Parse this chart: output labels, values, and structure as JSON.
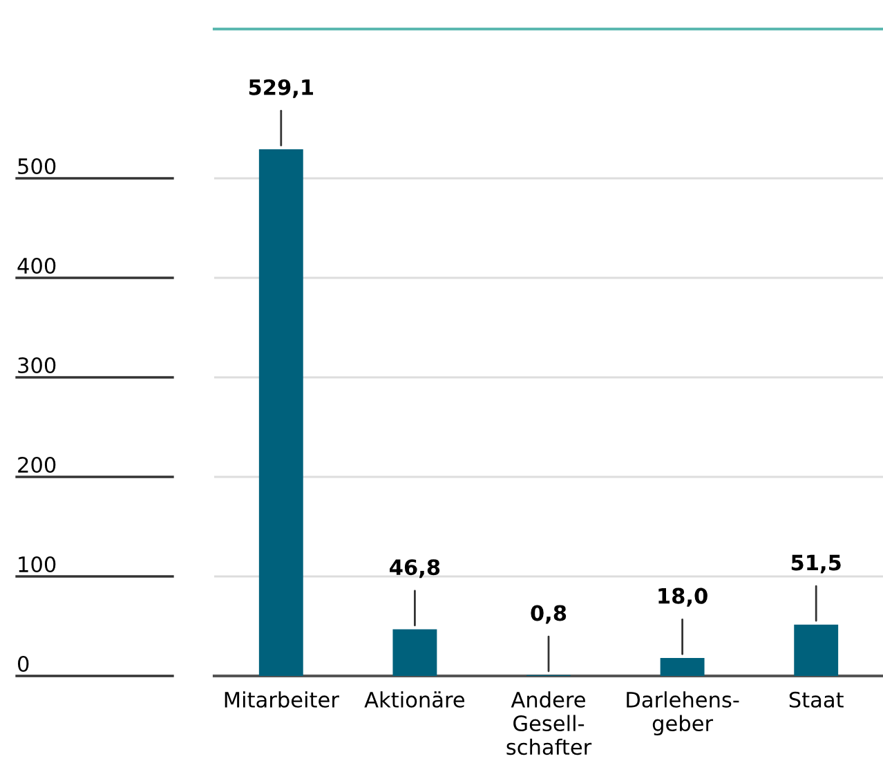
{
  "chart_data": {
    "type": "bar",
    "categories": [
      "Mitarbeiter",
      "Aktionäre",
      "Andere\nGesell-\nschafter",
      "Darlehens-\ngeber",
      "Staat"
    ],
    "values": [
      529.1,
      46.8,
      0.8,
      18.0,
      51.5
    ],
    "value_labels": [
      "529,1",
      "46,8",
      "0,8",
      "18,0",
      "51,5"
    ],
    "color": "#00617c",
    "ylim": [
      0,
      650
    ],
    "yticks": [
      0,
      100,
      200,
      300,
      400,
      500
    ],
    "grid": "y"
  }
}
